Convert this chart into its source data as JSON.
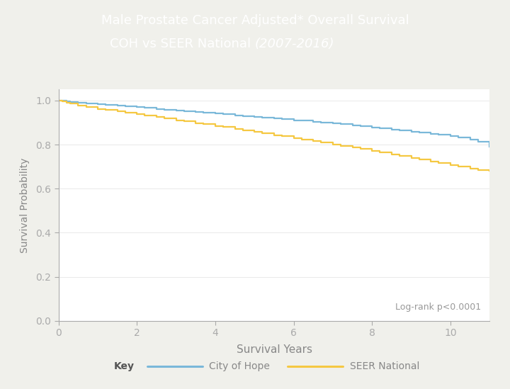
{
  "title_line1": "Male Prostate Cancer Adjusted* Overall Survival",
  "title_line2_main": "COH vs SEER National ",
  "title_line2_year": "(2007-2016)",
  "header_bg_color": "#3a6a9e",
  "accent_bar_color": "#4bbfcf",
  "plot_bg_color": "#ffffff",
  "outer_bg_color": "#f0f0eb",
  "xlabel": "Survival Years",
  "ylabel": "Survival Probability",
  "xlim": [
    0,
    11
  ],
  "ylim": [
    0.0,
    1.05
  ],
  "yticks": [
    0.0,
    0.2,
    0.4,
    0.6,
    0.8,
    1.0
  ],
  "xticks": [
    0,
    2,
    4,
    6,
    8,
    10
  ],
  "coh_color": "#7ab8d9",
  "seer_color": "#f5c842",
  "tick_color": "#aaaaaa",
  "axis_label_color": "#888888",
  "annotation_text": "Log-rank p<0.0001",
  "annotation_color": "#999999",
  "legend_key_label": "Key",
  "legend_coh_label": "City of Hope",
  "legend_seer_label": "SEER National",
  "coh_x": [
    0,
    0.1,
    0.2,
    0.3,
    0.5,
    0.7,
    1.0,
    1.2,
    1.5,
    1.7,
    2.0,
    2.2,
    2.5,
    2.7,
    3.0,
    3.2,
    3.5,
    3.7,
    4.0,
    4.2,
    4.5,
    4.7,
    5.0,
    5.2,
    5.5,
    5.7,
    6.0,
    6.2,
    6.5,
    6.7,
    7.0,
    7.2,
    7.5,
    7.7,
    8.0,
    8.2,
    8.5,
    8.7,
    9.0,
    9.2,
    9.5,
    9.7,
    10.0,
    10.2,
    10.5,
    10.7,
    11.0
  ],
  "coh_y": [
    1.0,
    0.998,
    0.996,
    0.994,
    0.991,
    0.988,
    0.983,
    0.98,
    0.976,
    0.973,
    0.969,
    0.966,
    0.962,
    0.959,
    0.955,
    0.952,
    0.948,
    0.945,
    0.94,
    0.937,
    0.933,
    0.93,
    0.926,
    0.923,
    0.919,
    0.916,
    0.911,
    0.908,
    0.903,
    0.9,
    0.895,
    0.892,
    0.887,
    0.884,
    0.878,
    0.875,
    0.869,
    0.866,
    0.859,
    0.856,
    0.849,
    0.846,
    0.838,
    0.833,
    0.822,
    0.812,
    0.792
  ],
  "seer_x": [
    0,
    0.1,
    0.2,
    0.3,
    0.5,
    0.7,
    1.0,
    1.2,
    1.5,
    1.7,
    2.0,
    2.2,
    2.5,
    2.7,
    3.0,
    3.2,
    3.5,
    3.7,
    4.0,
    4.2,
    4.5,
    4.7,
    5.0,
    5.2,
    5.5,
    5.7,
    6.0,
    6.2,
    6.5,
    6.7,
    7.0,
    7.2,
    7.5,
    7.7,
    8.0,
    8.2,
    8.5,
    8.7,
    9.0,
    9.2,
    9.5,
    9.7,
    10.0,
    10.2,
    10.5,
    10.7,
    11.0
  ],
  "seer_y": [
    1.0,
    0.995,
    0.99,
    0.985,
    0.978,
    0.971,
    0.962,
    0.957,
    0.95,
    0.945,
    0.937,
    0.932,
    0.924,
    0.919,
    0.911,
    0.906,
    0.898,
    0.893,
    0.884,
    0.879,
    0.871,
    0.866,
    0.857,
    0.852,
    0.843,
    0.838,
    0.829,
    0.824,
    0.815,
    0.81,
    0.8,
    0.795,
    0.786,
    0.781,
    0.771,
    0.766,
    0.756,
    0.75,
    0.74,
    0.734,
    0.724,
    0.718,
    0.707,
    0.7,
    0.69,
    0.683,
    0.68
  ]
}
